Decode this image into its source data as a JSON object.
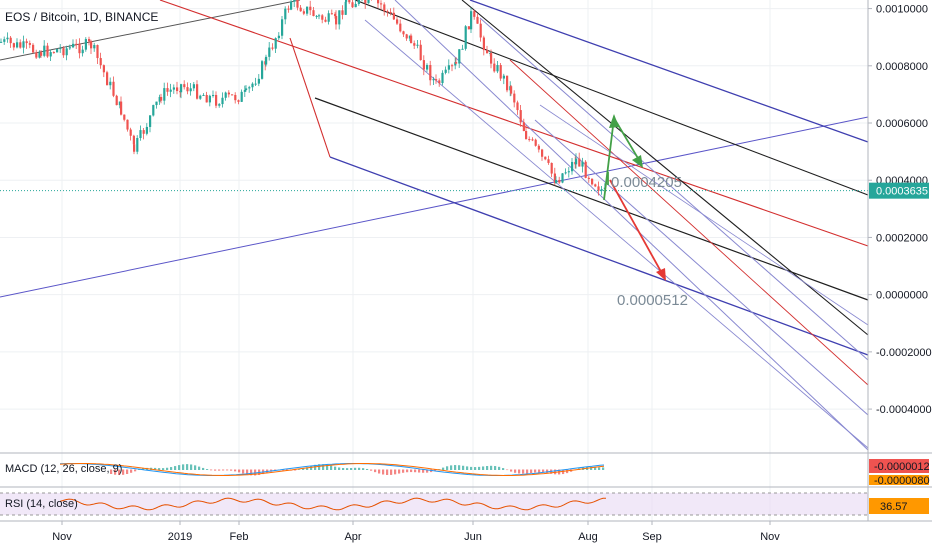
{
  "header": {
    "symbol_title": "EOS / Bitcoin, 1D, BINANCE"
  },
  "colors": {
    "up": "#26a69a",
    "down": "#ef5350",
    "pitchfork_blue": "#3f3fb0",
    "pitchfork_red": "#d32f2f",
    "pitchfork_black": "#1f1f1f",
    "arrow_green": "#43a047",
    "arrow_red": "#e53935",
    "price_marker": "#26a69a",
    "macd_marker": "#ef5350",
    "rsi_marker": "#ff9800",
    "rsi_band": "#e8d9f3"
  },
  "chart_data": [
    {
      "type": "candlestick",
      "title": "EOS / Bitcoin, 1D, BINANCE",
      "y_axis_labels": [
        "0.0010000",
        "0.0008000",
        "0.0006000",
        "0.0004000",
        "0.0002000",
        "0.0000000",
        "-0.0002000",
        "-0.0004000"
      ],
      "y_axis_values": [
        0.001,
        0.0008,
        0.0006,
        0.0004,
        0.0002,
        0.0,
        -0.0002,
        -0.0004
      ],
      "x_axis_labels": [
        "Nov",
        "2019",
        "Feb",
        "Apr",
        "Jun",
        "Aug",
        "Sep",
        "Nov"
      ],
      "ylim": [
        -0.00055,
        0.00103
      ],
      "last_price_label": "0.0003635",
      "last_price": 0.0003635,
      "annotations": [
        {
          "text": "0.0004205",
          "value": 0.0004205
        },
        {
          "text": "0.0000512",
          "value": 5.12e-05
        }
      ],
      "grid": true,
      "price_path": [
        [
          "Oct",
          0.0009
        ],
        [
          "Nov",
          0.00082
        ],
        [
          "Nov",
          0.00086
        ],
        [
          "Dec",
          0.0006
        ],
        [
          "Dec",
          0.00048
        ],
        [
          "Dec",
          0.00062
        ],
        [
          "2019",
          0.00071
        ],
        [
          "Jan",
          0.00066
        ],
        [
          "Feb",
          0.00069
        ],
        [
          "Feb",
          0.0008
        ],
        [
          "Feb",
          0.00101
        ],
        [
          "Mar",
          0.00092
        ],
        [
          "Mar",
          0.00095
        ],
        [
          "Apr",
          0.00102
        ],
        [
          "Apr",
          0.00095
        ],
        [
          "Apr",
          0.00085
        ],
        [
          "May",
          0.00074
        ],
        [
          "May",
          0.0008
        ],
        [
          "Jun",
          0.00097
        ],
        [
          "Jun",
          0.00082
        ],
        [
          "Jun",
          0.00072
        ],
        [
          "Jul",
          0.00052
        ],
        [
          "Jul",
          0.0004
        ],
        [
          "Jul",
          0.00047
        ],
        [
          "Aug",
          0.00037
        ]
      ]
    },
    {
      "type": "line",
      "name": "MACD",
      "legend": "MACD (12, 26, close, 9)",
      "value_label": "-0.0000012",
      "value": -1.2e-06,
      "secondary_label": "-0.0000080"
    },
    {
      "type": "line",
      "name": "RSI",
      "legend": "RSI (14, close)",
      "value_label": "36.57",
      "value": 36.57
    }
  ]
}
